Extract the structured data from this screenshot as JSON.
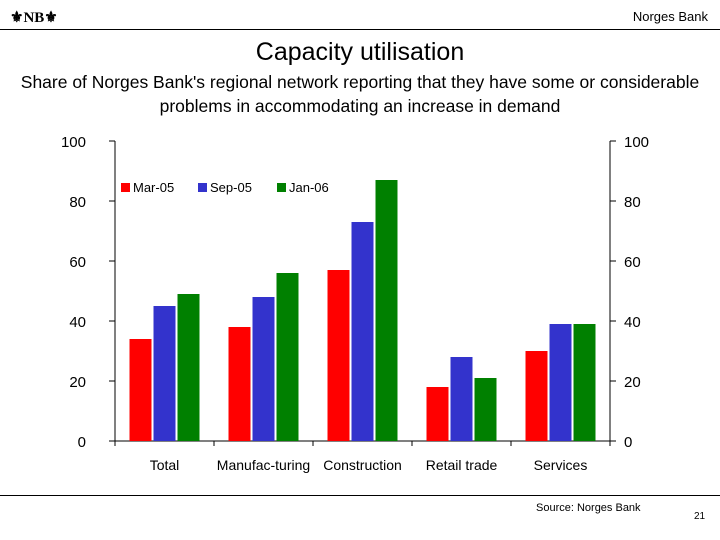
{
  "header": {
    "logo_text": "NB",
    "brand": "Norges Bank"
  },
  "colors": {
    "Mar-05": "#ff0000",
    "Sep-05": "#3333cc",
    "Jan-06": "#008000"
  },
  "chart_data": {
    "type": "bar",
    "title": "Capacity utilisation",
    "subtitle": "Share of Norges Bank's regional network reporting that they have some or considerable problems in accommodating an increase in demand",
    "categories": [
      "Total",
      "Manufac-turing",
      "Construction",
      "Retail trade",
      "Services"
    ],
    "series": [
      {
        "name": "Mar-05",
        "values": [
          34,
          38,
          57,
          18,
          30
        ]
      },
      {
        "name": "Sep-05",
        "values": [
          45,
          48,
          73,
          28,
          39
        ]
      },
      {
        "name": "Jan-06",
        "values": [
          49,
          56,
          87,
          21,
          39
        ]
      }
    ],
    "ylim": [
      0,
      100
    ],
    "yticks": [
      0,
      20,
      40,
      60,
      80,
      100
    ],
    "y_axis_both_sides": true,
    "legend_position": "top-left",
    "grid": false
  },
  "footer": {
    "source": "Source: Norges Bank",
    "page_number": "21"
  }
}
